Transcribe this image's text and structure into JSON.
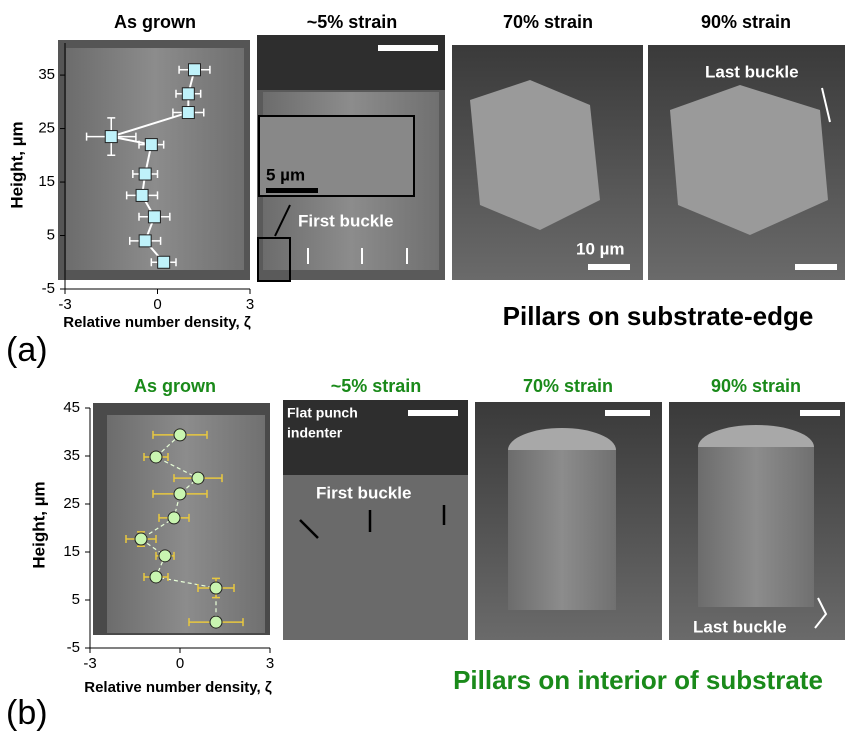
{
  "panel_a": {
    "label": "(a)",
    "titles": [
      "As grown",
      "~5% strain",
      "70% strain",
      "90% strain"
    ],
    "inset_scale": "5 µm",
    "first_buckle": "First buckle",
    "scale": "10 µm",
    "last_buckle": "Last buckle",
    "caption": "Pillars on substrate-edge"
  },
  "panel_b": {
    "label": "(b)",
    "titles": [
      "As grown",
      "~5% strain",
      "70% strain",
      "90% strain"
    ],
    "indenter": [
      "Flat punch",
      "indenter"
    ],
    "first_buckle": "First buckle",
    "last_buckle": "Last buckle",
    "caption": "Pillars on interior of substrate"
  },
  "chart_data": [
    {
      "type": "scatter",
      "x_label": "Relative number density, ζ",
      "y_label": "Height, µm",
      "x": [
        1.2,
        1.0,
        1.0,
        -1.5,
        -0.2,
        -0.4,
        -0.5,
        -0.1,
        -0.4,
        0.2
      ],
      "values": [
        36,
        31.5,
        28,
        23.5,
        22,
        16.5,
        12.5,
        8.5,
        4,
        0
      ],
      "xerr": [
        0.5,
        0.4,
        0.5,
        0.8,
        0.4,
        0.4,
        0.5,
        0.5,
        0.5,
        0.4
      ],
      "yerr": [
        1,
        1,
        1,
        3.5,
        1,
        1,
        1,
        1,
        1,
        1
      ],
      "color": "#bff2fa",
      "line_color": "#ffffff",
      "err_color": "#ffffff",
      "xlim": [
        -3,
        3
      ],
      "ylim": [
        -5,
        41
      ],
      "xticks": [
        -3,
        0,
        3
      ],
      "yticks": [
        -5,
        5,
        15,
        25,
        35
      ]
    },
    {
      "type": "scatter",
      "x_label": "Relative number density, ζ",
      "y_label": "Height, µm",
      "x": [
        0,
        -0.8,
        0.6,
        0,
        -0.2,
        -1.3,
        -0.5,
        -0.8,
        1.2,
        1.2
      ],
      "values": [
        39.4,
        34.8,
        30.4,
        27.1,
        22.1,
        17.7,
        14.2,
        9.8,
        7.5,
        0.4
      ],
      "xerr": [
        0.9,
        0.4,
        0.8,
        0.9,
        0.5,
        0.5,
        0.3,
        0.4,
        0.6,
        0.9
      ],
      "yerr": [
        1,
        1,
        1,
        1,
        1,
        1.5,
        1,
        1,
        2,
        1
      ],
      "color": "#c9f5b0",
      "line_color": "#e8ffd8",
      "err_color": "#e8c840",
      "dashed": true,
      "xlim": [
        -3,
        3
      ],
      "ylim": [
        -5,
        45
      ],
      "xticks": [
        -3,
        0,
        3
      ],
      "yticks": [
        -5,
        5,
        15,
        25,
        35,
        45
      ]
    }
  ]
}
